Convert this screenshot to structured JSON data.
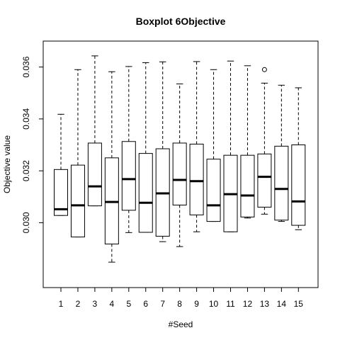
{
  "chart_data": {
    "type": "boxplot",
    "title": "Boxplot 6Objective",
    "xlabel": "#Seed",
    "ylabel": "Objective value",
    "ylim": [
      0.0275,
      0.037
    ],
    "y_ticks": [
      {
        "value": 0.03,
        "label": "0.030"
      },
      {
        "value": 0.032,
        "label": "0.032"
      },
      {
        "value": 0.034,
        "label": "0.034"
      },
      {
        "value": 0.036,
        "label": "0.036"
      }
    ],
    "categories": [
      "1",
      "2",
      "3",
      "4",
      "5",
      "6",
      "7",
      "8",
      "9",
      "10",
      "11",
      "12",
      "13",
      "14",
      "15"
    ],
    "boxes": [
      {
        "category": "1",
        "lower_whisker": 0.03028,
        "q1": 0.03028,
        "median": 0.03052,
        "q3": 0.03205,
        "upper_whisker": 0.03418,
        "outliers": []
      },
      {
        "category": "2",
        "lower_whisker": 0.02945,
        "q1": 0.02945,
        "median": 0.03067,
        "q3": 0.03222,
        "upper_whisker": 0.0359,
        "outliers": []
      },
      {
        "category": "3",
        "lower_whisker": 0.03065,
        "q1": 0.03065,
        "median": 0.0314,
        "q3": 0.03307,
        "upper_whisker": 0.03643,
        "outliers": []
      },
      {
        "category": "4",
        "lower_whisker": 0.02848,
        "q1": 0.02918,
        "median": 0.0308,
        "q3": 0.0325,
        "upper_whisker": 0.03582,
        "outliers": []
      },
      {
        "category": "5",
        "lower_whisker": 0.02962,
        "q1": 0.03048,
        "median": 0.03168,
        "q3": 0.03313,
        "upper_whisker": 0.03602,
        "outliers": []
      },
      {
        "category": "6",
        "lower_whisker": 0.02963,
        "q1": 0.02963,
        "median": 0.03077,
        "q3": 0.03267,
        "upper_whisker": 0.03617,
        "outliers": []
      },
      {
        "category": "7",
        "lower_whisker": 0.02927,
        "q1": 0.02948,
        "median": 0.03113,
        "q3": 0.03285,
        "upper_whisker": 0.0362,
        "outliers": []
      },
      {
        "category": "8",
        "lower_whisker": 0.02908,
        "q1": 0.03068,
        "median": 0.03165,
        "q3": 0.03307,
        "upper_whisker": 0.03535,
        "outliers": []
      },
      {
        "category": "9",
        "lower_whisker": 0.02965,
        "q1": 0.0303,
        "median": 0.0316,
        "q3": 0.03303,
        "upper_whisker": 0.03621,
        "outliers": []
      },
      {
        "category": "10",
        "lower_whisker": 0.03005,
        "q1": 0.03005,
        "median": 0.03067,
        "q3": 0.03245,
        "upper_whisker": 0.0359,
        "outliers": []
      },
      {
        "category": "11",
        "lower_whisker": 0.02965,
        "q1": 0.02965,
        "median": 0.0311,
        "q3": 0.0326,
        "upper_whisker": 0.03623,
        "outliers": []
      },
      {
        "category": "12",
        "lower_whisker": 0.03018,
        "q1": 0.03022,
        "median": 0.03105,
        "q3": 0.0326,
        "upper_whisker": 0.03605,
        "outliers": []
      },
      {
        "category": "13",
        "lower_whisker": 0.03033,
        "q1": 0.0306,
        "median": 0.03177,
        "q3": 0.03265,
        "upper_whisker": 0.03538,
        "outliers": [
          0.0359
        ]
      },
      {
        "category": "14",
        "lower_whisker": 0.03005,
        "q1": 0.0301,
        "median": 0.0313,
        "q3": 0.03295,
        "upper_whisker": 0.0353,
        "outliers": []
      },
      {
        "category": "15",
        "lower_whisker": 0.02973,
        "q1": 0.0299,
        "median": 0.03082,
        "q3": 0.033,
        "upper_whisker": 0.0352,
        "outliers": []
      }
    ],
    "grid": false,
    "colors": {
      "background": "#ffffff",
      "box_fill": "#ffffff",
      "stroke": "#000000"
    }
  }
}
